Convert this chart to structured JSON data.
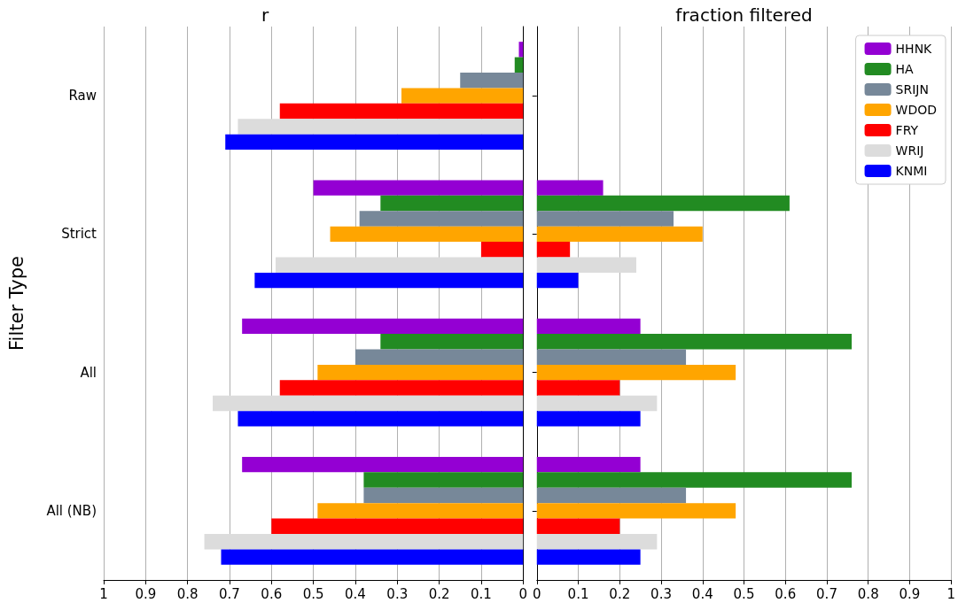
{
  "chart_data": [
    {
      "type": "bar",
      "title": "r",
      "ylabel": "Filter Type",
      "orientation": "horizontal",
      "categories": [
        "Raw",
        "Strict",
        "All",
        "All (NB)"
      ],
      "series": [
        {
          "color": "#9400d3",
          "values": [
            0.01,
            0.5,
            0.67,
            0.67
          ]
        },
        {
          "color": "#228b22",
          "values": [
            0.02,
            0.34,
            0.34,
            0.38
          ]
        },
        {
          "color": "#778899",
          "values": [
            0.15,
            0.39,
            0.4,
            0.38
          ]
        },
        {
          "color": "#ffa500",
          "values": [
            0.29,
            0.46,
            0.49,
            0.49
          ]
        },
        {
          "color": "#ff0000",
          "values": [
            0.58,
            0.1,
            0.58,
            0.6
          ]
        },
        {
          "color": "#dcdcdc",
          "values": [
            0.68,
            0.59,
            0.74,
            0.76
          ]
        },
        {
          "color": "#0000ff",
          "values": [
            0.71,
            0.64,
            0.68,
            0.72
          ]
        }
      ],
      "xlim": [
        1,
        0
      ],
      "xticks": [
        1,
        0.9,
        0.8,
        0.7,
        0.6,
        0.5,
        0.4,
        0.3,
        0.2,
        0.1,
        0
      ],
      "grid": "x"
    },
    {
      "type": "bar",
      "title": "fraction filtered",
      "orientation": "horizontal",
      "categories": [
        null,
        null,
        null,
        null
      ],
      "series": [
        {
          "name": "HHNK",
          "color": "#9400d3",
          "values": [
            0,
            0.16,
            0.25,
            0.25
          ]
        },
        {
          "name": "HA",
          "color": "#228b22",
          "values": [
            0,
            0.61,
            0.76,
            0.76
          ]
        },
        {
          "name": "SRIJN",
          "color": "#778899",
          "values": [
            0,
            0.33,
            0.36,
            0.36
          ]
        },
        {
          "name": "WDOD",
          "color": "#ffa500",
          "values": [
            0,
            0.4,
            0.48,
            0.48
          ]
        },
        {
          "name": "FRY",
          "color": "#ff0000",
          "values": [
            0,
            0.08,
            0.2,
            0.2
          ]
        },
        {
          "name": "WRIJ",
          "color": "#dcdcdc",
          "values": [
            0,
            0.24,
            0.29,
            0.29
          ]
        },
        {
          "name": "KNMI",
          "color": "#0000ff",
          "values": [
            0,
            0.1,
            0.25,
            0.25
          ]
        }
      ],
      "xlim": [
        0,
        1
      ],
      "xticks": [
        0,
        0.1,
        0.2,
        0.3,
        0.4,
        0.5,
        0.6,
        0.7,
        0.8,
        0.9,
        1
      ],
      "grid": "x",
      "legend": "top right",
      "tick_labels": "x"
    }
  ]
}
